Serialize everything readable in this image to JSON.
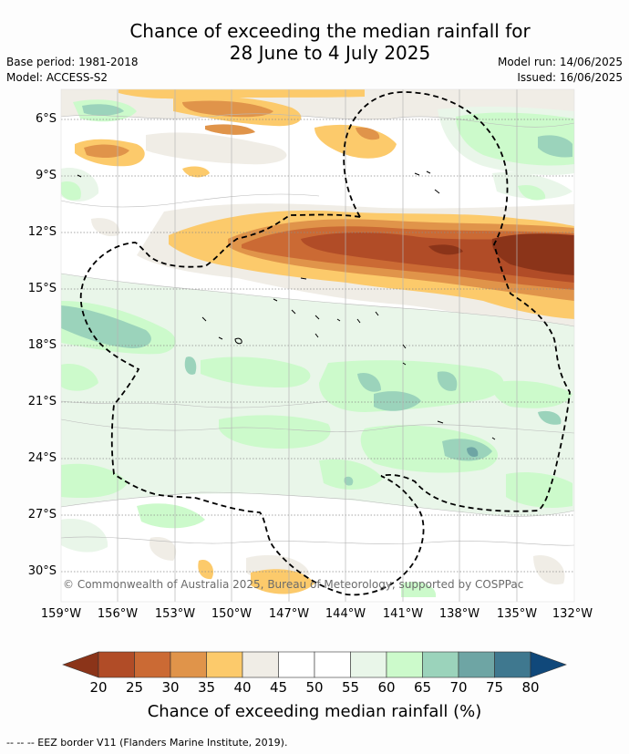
{
  "title_line1": "Chance of exceeding the median rainfall for",
  "title_line2": "28 June to 4 July 2025",
  "base_period": "Base period: 1981-2018",
  "model": "Model: ACCESS-S2",
  "model_run": "Model run: 14/06/2025",
  "issued": "Issued: 16/06/2025",
  "copyright": "© Commonwealth of Australia 2025, Bureau of Meteorology, supported by COSPPac",
  "lat_labels": [
    "6°S",
    "9°S",
    "12°S",
    "15°S",
    "18°S",
    "21°S",
    "24°S",
    "27°S",
    "30°S"
  ],
  "lon_labels": [
    "159°W",
    "156°W",
    "153°W",
    "150°W",
    "147°W",
    "144°W",
    "141°W",
    "138°W",
    "135°W",
    "132°W"
  ],
  "colorbar": {
    "title": "Chance of exceeding median rainfall (%)",
    "ticks": [
      "20",
      "25",
      "30",
      "35",
      "40",
      "45",
      "50",
      "55",
      "60",
      "65",
      "70",
      "75",
      "80"
    ],
    "colors": [
      "#8b3419",
      "#b14c27",
      "#cb6a34",
      "#e0944a",
      "#fcca6b",
      "#f0ede6",
      "#ffffff",
      "#ffffff",
      "#e9f6e9",
      "#ccfacb",
      "#9bd3bb",
      "#6ea5a4",
      "#3f788f",
      "#10487a"
    ]
  },
  "footnote": "--  --  -- EEZ border V11 (Flanders Marine Institute, 2019)."
}
